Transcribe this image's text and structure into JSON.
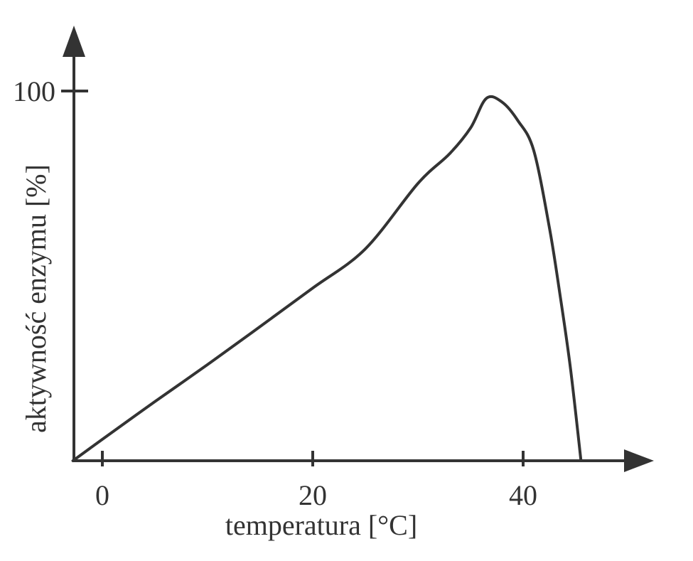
{
  "chart_data": {
    "type": "line",
    "title": "",
    "xlabel": "temperatura [°C]",
    "ylabel": "aktywność enzymu [%]",
    "xlim": [
      -2.8,
      48
    ],
    "ylim": [
      0,
      110
    ],
    "x_ticks": [
      {
        "value": 0,
        "label": "0"
      },
      {
        "value": 20,
        "label": "20"
      },
      {
        "value": 40,
        "label": "40"
      }
    ],
    "y_ticks": [
      {
        "value": 100,
        "label": "100"
      }
    ],
    "grid": false,
    "legend": "none",
    "series": [
      {
        "color": "#333333",
        "x": [
          -2.8,
          0,
          5,
          10,
          15,
          20,
          25,
          30,
          33,
          35,
          36.5,
          38,
          39.5,
          41,
          42.5,
          43.5,
          44.5,
          45.5
        ],
        "y": [
          0,
          5.8,
          16,
          26,
          36.3,
          46.7,
          57.3,
          75,
          83,
          90,
          98,
          97,
          92,
          84,
          63,
          45,
          25,
          0
        ]
      }
    ]
  }
}
